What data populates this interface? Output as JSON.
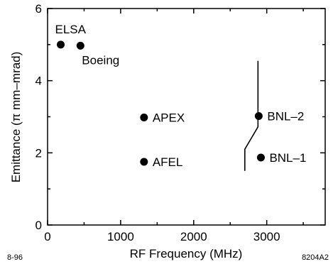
{
  "chart_data": {
    "type": "scatter",
    "xlabel": "RF Frequency  (MHz)",
    "ylabel": "Emittance  (π mm–mrad)",
    "xlim": [
      0,
      3800
    ],
    "ylim": [
      0,
      6
    ],
    "x_ticks": [
      0,
      1000,
      2000,
      3000
    ],
    "x_tick_labels": [
      "0",
      "1000",
      "2000",
      "3000"
    ],
    "x_minor_ticks": [
      500,
      1500,
      2500,
      3500
    ],
    "y_ticks": [
      0,
      2,
      4,
      6
    ],
    "y_tick_labels": [
      "0",
      "2",
      "4",
      "6"
    ],
    "y_minor_ticks": [
      1,
      3,
      5
    ],
    "grid": false,
    "points": [
      {
        "label": "ELSA",
        "x": 180,
        "y": 5.0,
        "label_pos": "above-left"
      },
      {
        "label": "Boeing",
        "x": 450,
        "y": 4.97,
        "label_pos": "below-right"
      },
      {
        "label": "APEX",
        "x": 1320,
        "y": 2.98,
        "label_pos": "right"
      },
      {
        "label": "AFEL",
        "x": 1320,
        "y": 1.75,
        "label_pos": "right"
      },
      {
        "label": "BNL–2",
        "x": 2890,
        "y": 3.02,
        "label_pos": "right"
      },
      {
        "label": "BNL–1",
        "x": 2920,
        "y": 1.87,
        "label_pos": "right"
      }
    ],
    "curve": [
      [
        2700,
        1.5
      ],
      [
        2700,
        2.1
      ],
      [
        2880,
        2.72
      ],
      [
        2880,
        4.55
      ]
    ]
  },
  "footnotes": {
    "left": "8-96",
    "right": "8204A2"
  }
}
